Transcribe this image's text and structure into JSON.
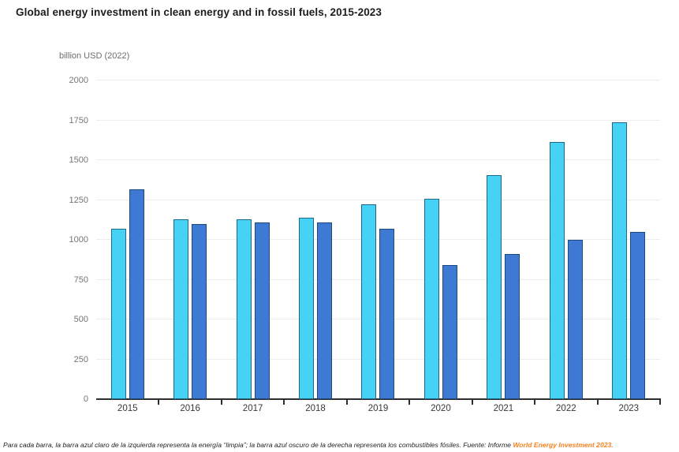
{
  "title": "Global energy investment in clean energy and in fossil fuels, 2015-2023",
  "unit_label": "billion USD (2022)",
  "footer": {
    "text_before_link": "Para cada barra, la barra azul claro de la izquierda representa la energía “limpia”; la barra azul oscuro de la derecha representa los combustibles fósiles. Fuente: Informe ",
    "link_text": "World Energy Investment 2023",
    "text_after_link": ".",
    "link_color": "#f58220"
  },
  "chart_data": {
    "type": "bar",
    "title": "Global energy investment in clean energy and in fossil fuels, 2015-2023",
    "categories": [
      "2015",
      "2016",
      "2017",
      "2018",
      "2019",
      "2020",
      "2021",
      "2022",
      "2023"
    ],
    "series": [
      {
        "name": "Clean energy",
        "color": "#45d2f5",
        "values": [
          1072,
          1130,
          1127,
          1137,
          1222,
          1257,
          1405,
          1615,
          1740
        ]
      },
      {
        "name": "Fossil fuels",
        "color": "#3e7ad3",
        "values": [
          1317,
          1101,
          1110,
          1107,
          1068,
          840,
          913,
          1000,
          1048
        ]
      }
    ],
    "xlabel": "",
    "ylabel": "billion USD (2022)",
    "ylim": [
      0,
      2000
    ],
    "ytick_step": 250,
    "grid": true,
    "legend_position": "none (series identified in footer caption)"
  },
  "colors": {
    "clean_bar": "#45d2f5",
    "fossil_bar": "#3e7ad3",
    "bar_border": "rgba(13,48,79,0.65)",
    "gridline": "#ececec",
    "axis": "#2e2e2e",
    "link": "#f58220"
  }
}
